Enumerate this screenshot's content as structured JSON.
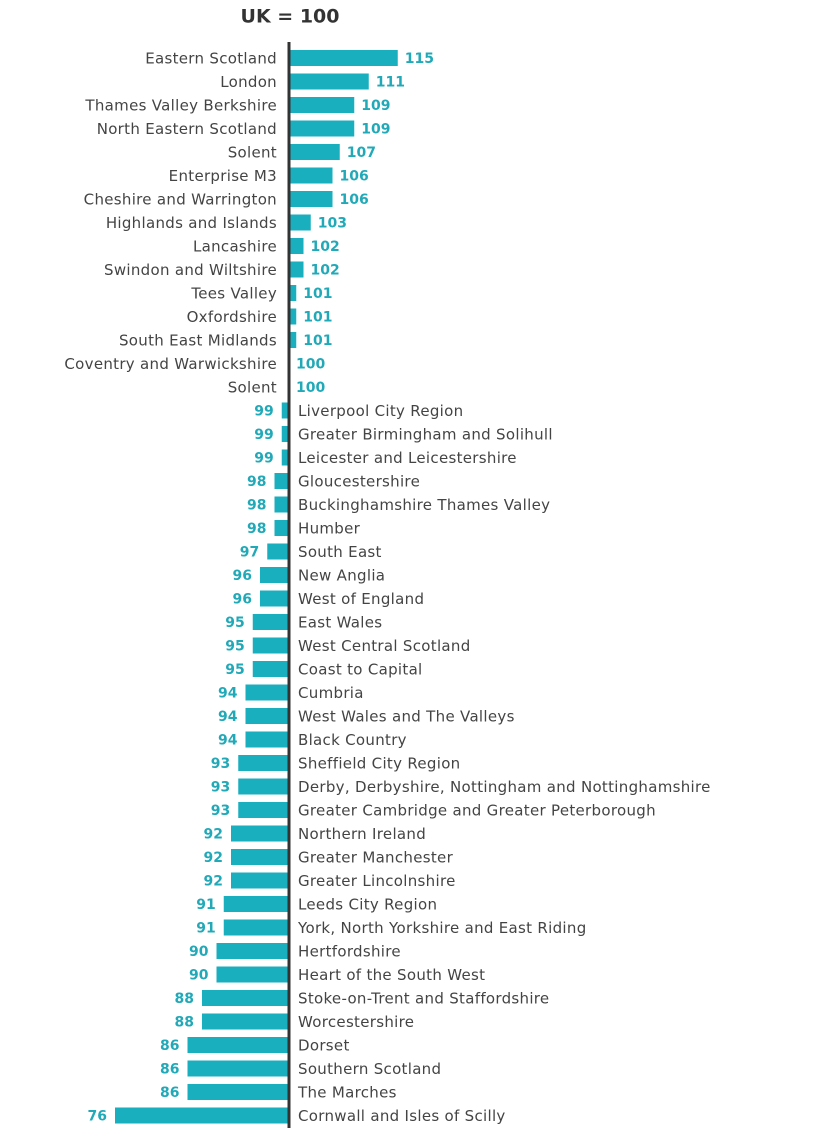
{
  "chart_data": {
    "type": "bar",
    "orientation": "horizontal",
    "title": "UK = 100",
    "baseline": 100,
    "color": "#1aafbf",
    "label_color": "#22a9b8",
    "categories": [
      "Eastern Scotland",
      "London",
      "Thames Valley Berkshire",
      "North Eastern Scotland",
      "Solent",
      "Enterprise M3",
      "Cheshire and Warrington",
      "Highlands and Islands",
      "Lancashire",
      "Swindon and Wiltshire",
      "Tees Valley",
      "Oxfordshire",
      "South East Midlands",
      "Coventry and Warwickshire",
      "Solent",
      "Liverpool City Region",
      "Greater Birmingham and Solihull",
      "Leicester and Leicestershire",
      "Gloucestershire",
      "Buckinghamshire Thames Valley",
      "Humber",
      "South East",
      "New Anglia",
      "West of England",
      "East Wales",
      "West Central Scotland",
      "Coast to Capital",
      "Cumbria",
      "West Wales and The Valleys",
      "Black Country",
      "Sheffield City Region",
      "Derby, Derbyshire, Nottingham and Nottinghamshire",
      "Greater Cambridge and Greater Peterborough",
      "Northern Ireland",
      "Greater Manchester",
      "Greater Lincolnshire",
      "Leeds City Region",
      "York, North Yorkshire and East Riding",
      "Hertfordshire",
      "Heart of the South West",
      "Stoke-on-Trent and Staffordshire",
      "Worcestershire",
      "Dorset",
      "Southern Scotland",
      "The Marches",
      "Cornwall and Isles of Scilly"
    ],
    "values": [
      115,
      111,
      109,
      109,
      107,
      106,
      106,
      103,
      102,
      102,
      101,
      101,
      101,
      100,
      100,
      99,
      99,
      99,
      98,
      98,
      98,
      97,
      96,
      96,
      95,
      95,
      95,
      94,
      94,
      94,
      93,
      93,
      93,
      92,
      92,
      92,
      91,
      91,
      90,
      90,
      88,
      88,
      86,
      86,
      86,
      76
    ]
  }
}
